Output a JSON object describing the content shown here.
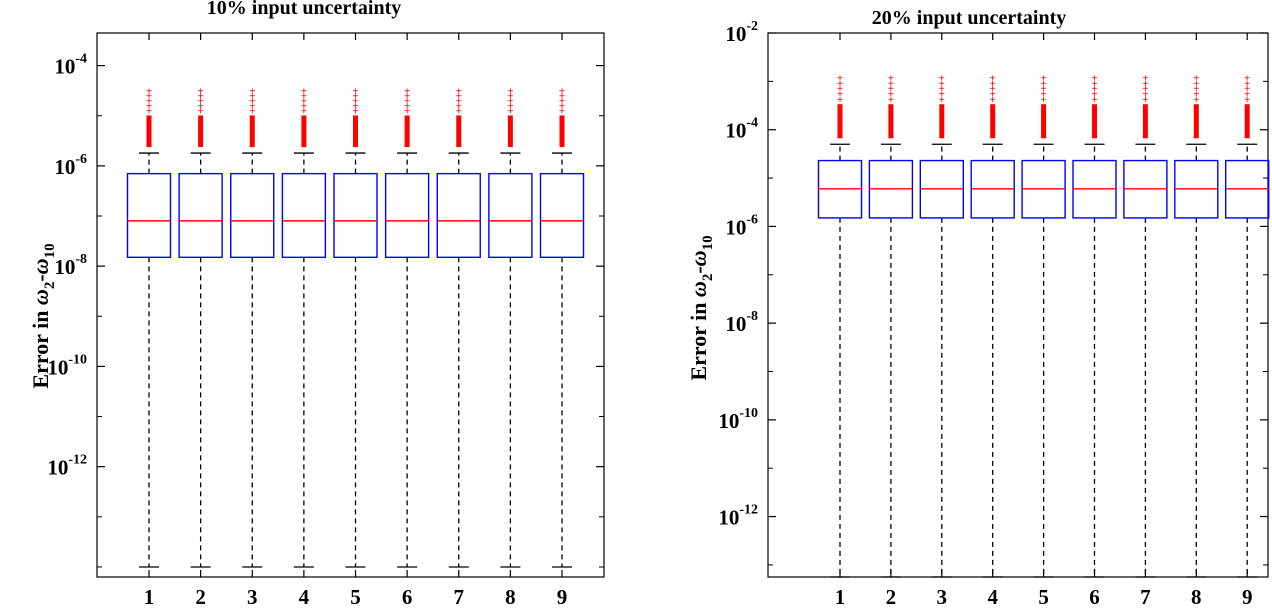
{
  "chart_data": [
    {
      "type": "box",
      "title": "10% input uncertainty",
      "ylabel_prefix": "Error in ",
      "ylabel_symbol": "ω",
      "ylabel_sub1": "2",
      "ylabel_dash": "-",
      "ylabel_sub2": "10",
      "yscale": "log",
      "ylim_exp": [
        -14.2,
        -3.35
      ],
      "ytick_exps": [
        -12,
        -10,
        -8,
        -6,
        -4
      ],
      "categories": [
        "1",
        "2",
        "3",
        "4",
        "5",
        "6",
        "7",
        "8",
        "9"
      ],
      "box": {
        "q1": 1.5e-08,
        "median": 8e-08,
        "q3": 7e-07,
        "whisker_low": 1e-14,
        "whisker_high": 1.8e-06
      },
      "outliers_max": 3.2e-05,
      "colors": {
        "box": "#0000ff",
        "median": "#ff0000",
        "outlier": "#ff0000",
        "whisker": "#000000"
      }
    },
    {
      "type": "box",
      "title": "20% input uncertainty",
      "ylabel_prefix": "Error in ",
      "ylabel_symbol": "ω",
      "ylabel_sub1": "2",
      "ylabel_dash": "-",
      "ylabel_sub2": "10",
      "yscale": "log",
      "ylim_exp": [
        -13.25,
        -2.0
      ],
      "ytick_exps": [
        -12,
        -10,
        -8,
        -6,
        -4,
        -2
      ],
      "categories": [
        "1",
        "2",
        "3",
        "4",
        "5",
        "6",
        "7",
        "8",
        "9"
      ],
      "box": {
        "q1": 1.5e-06,
        "median": 6e-06,
        "q3": 2.3e-05,
        "whisker_low": 1e-14,
        "whisker_high": 5e-05
      },
      "outliers_max": 0.0012,
      "colors": {
        "box": "#0000ff",
        "median": "#ff0000",
        "outlier": "#ff0000",
        "whisker": "#000000"
      }
    }
  ]
}
